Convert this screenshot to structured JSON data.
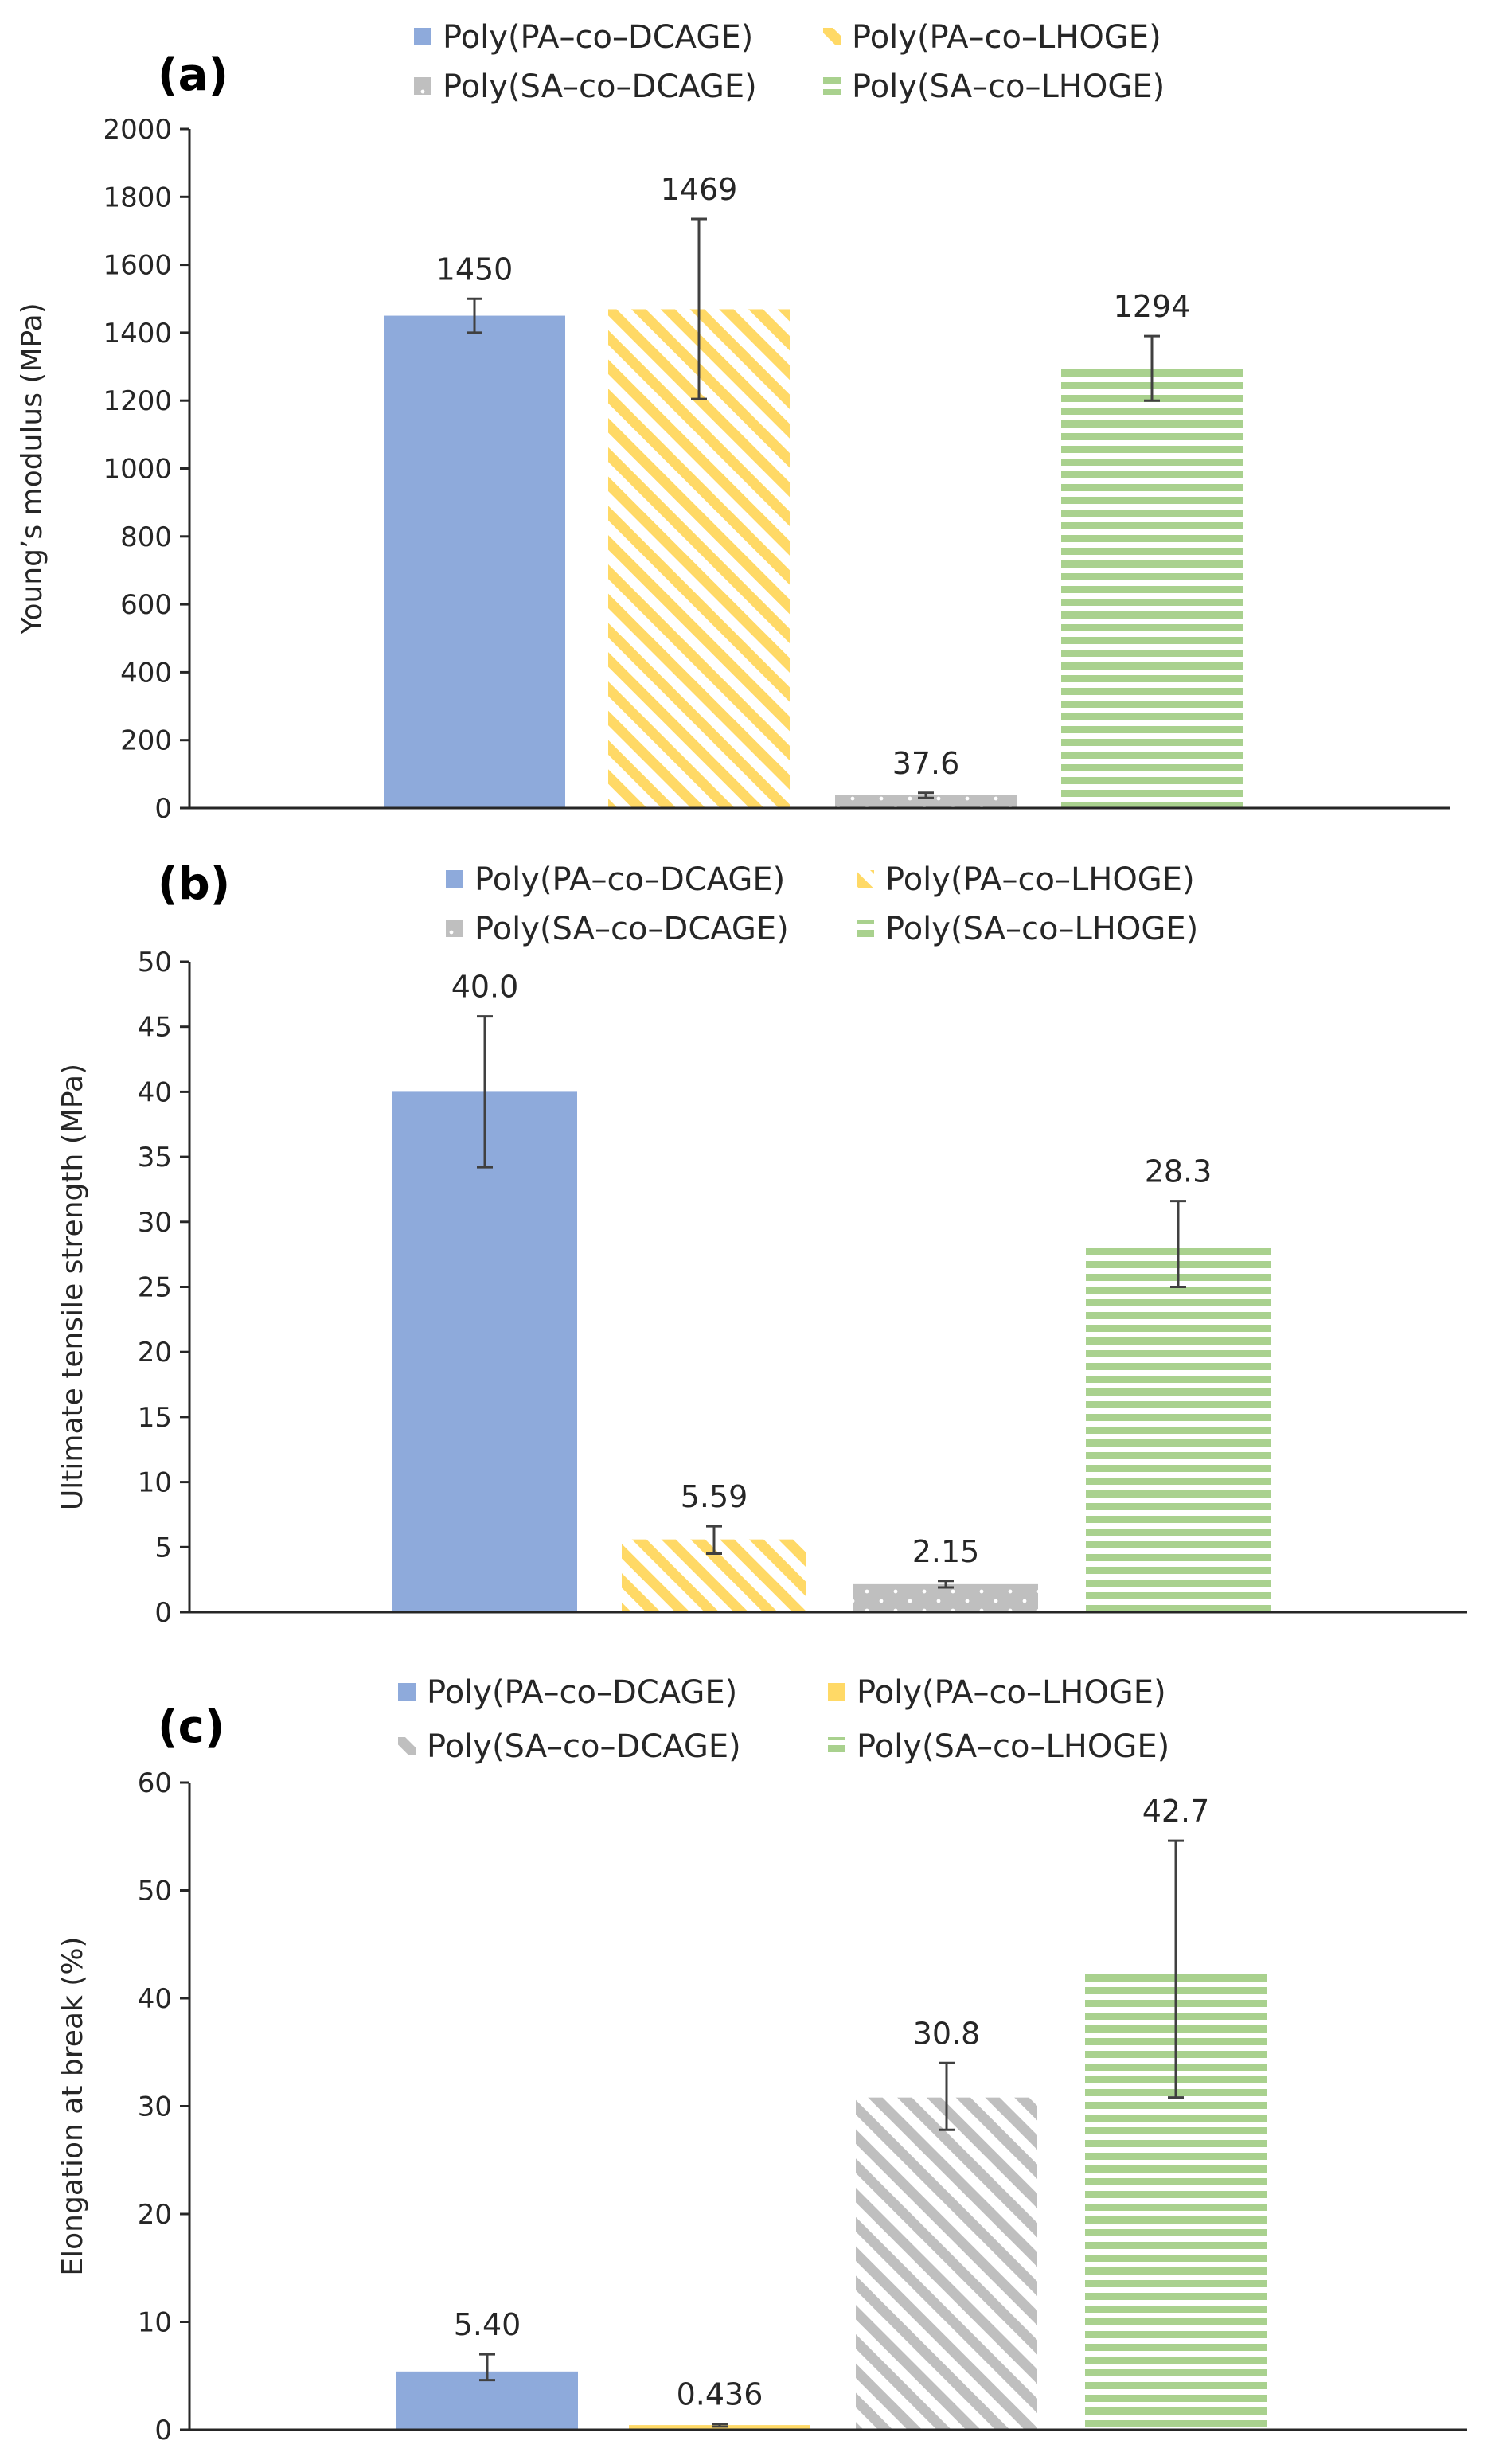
{
  "chart_data": [
    {
      "type": "bar",
      "panel_label": "(a)",
      "ylabel": "Young’s modulus (MPa)",
      "ylim": [
        0,
        2000
      ],
      "yticks": [
        0,
        200,
        400,
        600,
        800,
        1000,
        1200,
        1400,
        1600,
        1800,
        2000
      ],
      "grid": false,
      "legend": [
        "Poly(PA–co–DCAGE)",
        "Poly(PA–co–LHOGE)",
        "Poly(SA–co–DCAGE)",
        "Poly(SA–co–LHOGE)"
      ],
      "values": [
        1450,
        1469,
        37.6,
        1294
      ],
      "labels": [
        "1450",
        "1469",
        "37.6",
        "1294"
      ],
      "err_low": [
        1400,
        1205,
        30,
        1200
      ],
      "err_high": [
        1500,
        1735,
        45,
        1390
      ],
      "patterns": [
        "solid-blue",
        "diag-yellow",
        "dots-gray",
        "hstripe-green"
      ]
    },
    {
      "type": "bar",
      "panel_label": "(b)",
      "ylabel": "Ultimate tensile strength (MPa)",
      "ylim": [
        0,
        50
      ],
      "yticks": [
        0,
        5,
        10,
        15,
        20,
        25,
        30,
        35,
        40,
        45,
        50
      ],
      "grid": false,
      "legend": [
        "Poly(PA–co–DCAGE)",
        "Poly(PA–co–LHOGE)",
        "Poly(SA–co–DCAGE)",
        "Poly(SA–co–LHOGE)"
      ],
      "values": [
        40.0,
        5.59,
        2.15,
        28.3
      ],
      "labels": [
        "40.0",
        "5.59",
        "2.15",
        "28.3"
      ],
      "err_low": [
        34.2,
        4.5,
        1.9,
        25.0
      ],
      "err_high": [
        45.8,
        6.6,
        2.4,
        31.6
      ],
      "patterns": [
        "solid-blue",
        "diag-yellow",
        "dots-gray",
        "hstripe-green"
      ]
    },
    {
      "type": "bar",
      "panel_label": "(c)",
      "ylabel": "Elongation at break (%)",
      "ylim": [
        0,
        60
      ],
      "yticks": [
        0,
        10,
        20,
        30,
        40,
        50,
        60
      ],
      "grid": false,
      "legend": [
        "Poly(PA–co–DCAGE)",
        "Poly(PA–co–LHOGE)",
        "Poly(SA–co–DCAGE)",
        "Poly(SA–co–LHOGE)"
      ],
      "values": [
        5.4,
        0.436,
        30.8,
        42.7
      ],
      "labels": [
        "5.40",
        "0.436",
        "30.8",
        "42.7"
      ],
      "err_low": [
        4.6,
        0.3,
        27.8,
        30.8
      ],
      "err_high": [
        7.0,
        0.55,
        34.0,
        54.6
      ],
      "patterns": [
        "solid-blue",
        "solid-yellow",
        "diag-gray",
        "hstripe-green"
      ]
    }
  ],
  "colors": {
    "blue": "#8EAADB",
    "yellow": "#FFD966",
    "gray": "#BFBFBF",
    "green": "#A9D18E",
    "axis": "#262626"
  }
}
